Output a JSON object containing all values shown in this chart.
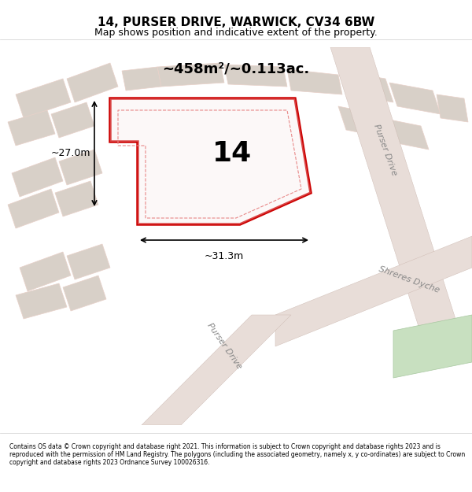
{
  "title_line1": "14, PURSER DRIVE, WARWICK, CV34 6BW",
  "title_line2": "Map shows position and indicative extent of the property.",
  "footer_text": "Contains OS data © Crown copyright and database right 2021. This information is subject to Crown copyright and database rights 2023 and is reproduced with the permission of HM Land Registry. The polygons (including the associated geometry, namely x, y co-ordinates) are subject to Crown copyright and database rights 2023 Ordnance Survey 100026316.",
  "area_text": "~458m²/~0.113ac.",
  "label_number": "14",
  "dim_width": "~31.3m",
  "dim_height": "~27.0m",
  "bg_color": "#f0ece8",
  "map_bg": "#f5f0eb",
  "highlight_color": "#cc0000",
  "road_color": "#e8d0c8",
  "building_color": "#d8d0c8",
  "green_color": "#c8e0c0",
  "road_label1": "Purser Drive",
  "road_label2": "Shreres Dyche",
  "road_label3": "Purser Drive"
}
